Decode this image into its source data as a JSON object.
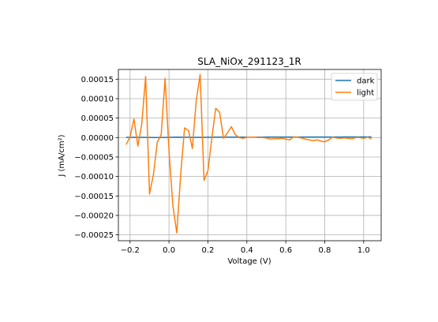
{
  "chart_data": {
    "type": "line",
    "title": "SLA_NiOx_291123_1R",
    "xlabel": "Voltage (V)",
    "ylabel": "J (mA/cm²)",
    "xlim": [
      -0.26,
      1.09
    ],
    "ylim": [
      -0.000265,
      0.000175
    ],
    "grid": true,
    "legend_position": "top-right",
    "x_ticks": [
      {
        "value": -0.2,
        "label": "−0.2"
      },
      {
        "value": 0.0,
        "label": "0.0"
      },
      {
        "value": 0.2,
        "label": "0.2"
      },
      {
        "value": 0.4,
        "label": "0.4"
      },
      {
        "value": 0.6,
        "label": "0.6"
      },
      {
        "value": 0.8,
        "label": "0.8"
      },
      {
        "value": 1.0,
        "label": "1.0"
      }
    ],
    "y_ticks": [
      {
        "value": 0.00015,
        "label": "0.00015"
      },
      {
        "value": 0.0001,
        "label": "0.00010"
      },
      {
        "value": 5e-05,
        "label": "0.00005"
      },
      {
        "value": 0.0,
        "label": "0.00000"
      },
      {
        "value": -5e-05,
        "label": "−0.00005"
      },
      {
        "value": -0.0001,
        "label": "−0.00010"
      },
      {
        "value": -0.00015,
        "label": "−0.00015"
      },
      {
        "value": -0.0002,
        "label": "−0.00020"
      },
      {
        "value": -0.00025,
        "label": "−0.00025"
      }
    ],
    "series": [
      {
        "name": "dark",
        "color": "#1f77b4",
        "x": [
          -0.22,
          -0.2,
          -0.18,
          -0.16,
          -0.14,
          -0.12,
          -0.1,
          -0.08,
          -0.06,
          -0.04,
          -0.02,
          0.0,
          0.02,
          0.04,
          0.06,
          0.08,
          0.1,
          0.12,
          0.14,
          0.16,
          0.18,
          0.2,
          0.22,
          0.24,
          0.26,
          0.28,
          0.3,
          0.32,
          0.34,
          0.36,
          0.38,
          0.4,
          0.42,
          0.44,
          0.46,
          0.48,
          0.5,
          0.52,
          0.54,
          0.56,
          0.58,
          0.6,
          0.62,
          0.64,
          0.66,
          0.68,
          0.7,
          0.72,
          0.74,
          0.76,
          0.78,
          0.8,
          0.82,
          0.84,
          0.86,
          0.88,
          0.9,
          0.92,
          0.94,
          0.96,
          0.98,
          1.0,
          1.02,
          1.04
        ],
        "y": [
          5e-07,
          5e-07,
          5e-07,
          5e-07,
          5e-07,
          4e-07,
          3e-07,
          2e-07,
          2e-07,
          3e-07,
          4e-07,
          6e-07,
          8e-07,
          1e-06,
          9e-07,
          8e-07,
          8e-07,
          7e-07,
          7e-07,
          7e-07,
          7e-07,
          8e-07,
          9e-07,
          1e-06,
          1e-06,
          1e-06,
          1.1e-06,
          1.1e-06,
          1.1e-06,
          1.1e-06,
          1.1e-06,
          1.2e-06,
          1.2e-06,
          1.2e-06,
          1.2e-06,
          1.2e-06,
          1.3e-06,
          1.3e-06,
          1.3e-06,
          1.3e-06,
          1.3e-06,
          1.3e-06,
          1.3e-06,
          1.4e-06,
          1.4e-06,
          1.4e-06,
          1.4e-06,
          1.4e-06,
          1.4e-06,
          1.4e-06,
          1.5e-06,
          1.5e-06,
          1.5e-06,
          1.5e-06,
          1.5e-06,
          1.5e-06,
          1.6e-06,
          1.6e-06,
          1.6e-06,
          1.6e-06,
          1.7e-06,
          1.7e-06,
          1.7e-06,
          1.8e-06
        ]
      },
      {
        "name": "light",
        "color": "#ff7f0e",
        "x": [
          -0.22,
          -0.2,
          -0.18,
          -0.16,
          -0.14,
          -0.12,
          -0.1,
          -0.08,
          -0.06,
          -0.04,
          -0.02,
          0.0,
          0.02,
          0.04,
          0.06,
          0.08,
          0.1,
          0.12,
          0.14,
          0.16,
          0.18,
          0.2,
          0.22,
          0.24,
          0.26,
          0.28,
          0.3,
          0.32,
          0.34,
          0.36,
          0.38,
          0.4,
          0.42,
          0.44,
          0.46,
          0.48,
          0.5,
          0.52,
          0.54,
          0.56,
          0.58,
          0.6,
          0.62,
          0.64,
          0.66,
          0.68,
          0.7,
          0.72,
          0.74,
          0.76,
          0.78,
          0.8,
          0.82,
          0.84,
          0.86,
          0.88,
          0.9,
          0.92,
          0.94,
          0.96,
          0.98,
          1.0,
          1.02,
          1.04
        ],
        "y": [
          -1.8e-05,
          2e-06,
          4.8e-05,
          -2.2e-05,
          3.5e-05,
          0.000157,
          -0.000145,
          -9.5e-05,
          -1.2e-05,
          8e-06,
          0.000152,
          -3.5e-05,
          -0.000175,
          -0.000245,
          -9.5e-05,
          2.5e-05,
          1.8e-05,
          -2.8e-05,
          9.5e-05,
          0.000162,
          -0.00011,
          -8.5e-05,
          -2e-06,
          7.5e-05,
          6.5e-05,
          -2e-06,
          1.2e-05,
          2.8e-05,
          8e-06,
          0.0,
          -2e-06,
          1e-06,
          1e-06,
          1e-06,
          0.0,
          0.0,
          -1e-06,
          -4e-06,
          -3e-06,
          -3e-06,
          -2e-06,
          -4e-06,
          -6e-06,
          2e-06,
          1e-06,
          -1e-06,
          -4e-06,
          -6e-06,
          -8e-06,
          -6e-06,
          -9e-06,
          -1.1e-05,
          -6e-06,
          1e-06,
          -1e-06,
          -2e-06,
          -1e-06,
          -2e-06,
          -3e-06,
          0.0,
          0.0,
          -2e-06,
          1e-06,
          -3e-06
        ]
      }
    ]
  }
}
